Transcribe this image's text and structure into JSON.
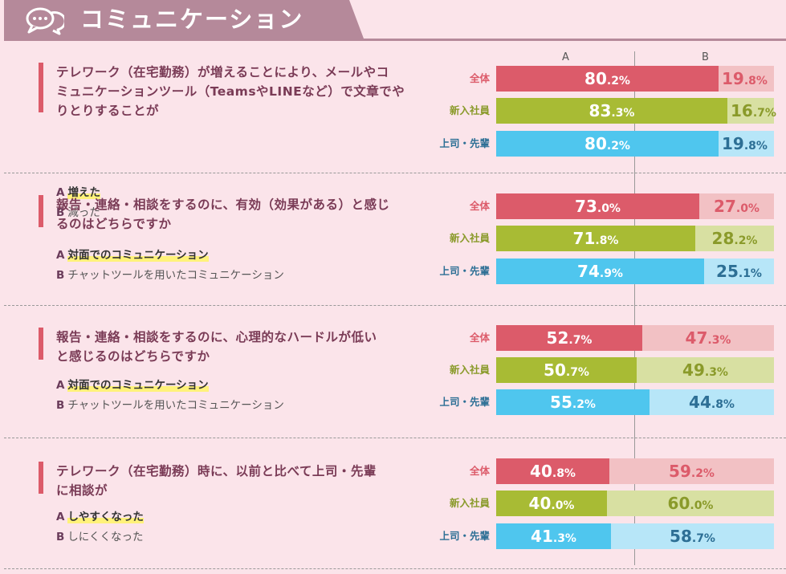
{
  "header": {
    "title": "コミュニケーション"
  },
  "axis": {
    "a_label": "A",
    "b_label": "B"
  },
  "colors": {
    "overall": {
      "a": "#dc5b6a",
      "b": "#f2c1c4",
      "text_b": "#dc5b6a",
      "label": "#dc5b6a"
    },
    "new": {
      "a": "#a8bb34",
      "b": "#d8e0a2",
      "text_b": "#8a9a2a",
      "label": "#8a9a2a"
    },
    "boss": {
      "a": "#4fc6ee",
      "b": "#b7e6f8",
      "text_b": "#2d6f95",
      "label": "#2d6f95"
    }
  },
  "sections": [
    {
      "question_lines": [
        "テレワーク（在宅勤務）が増えることにより、メールやコ",
        "ミュニケーションツール（TeamsやLINEなど）で文章でや",
        "りとりすることが"
      ],
      "option_a": {
        "tag": "A",
        "text": "増えた"
      },
      "option_b": {
        "tag": "B",
        "text": "減った"
      }
    },
    {
      "question_lines": [
        "報告・連絡・相談をするのに、有効（効果がある）と感じ",
        "るのはどちらですか"
      ],
      "option_a": {
        "tag": "A",
        "text": "対面でのコミュニケーション"
      },
      "option_b": {
        "tag": "B",
        "text": "チャットツールを用いたコミュニケーション"
      }
    },
    {
      "question_lines": [
        "報告・連絡・相談をするのに、心理的なハードルが低い",
        "と感じるのはどちらですか"
      ],
      "option_a": {
        "tag": "A",
        "text": "対面でのコミュニケーション"
      },
      "option_b": {
        "tag": "B",
        "text": "チャットツールを用いたコミュニケーション"
      }
    },
    {
      "question_lines": [
        "テレワーク（在宅勤務）時に、以前と比べて上司・先輩",
        "に相談が"
      ],
      "option_a": {
        "tag": "A",
        "text": "しやすくなった"
      },
      "option_b": {
        "tag": "B",
        "text": "しにくくなった"
      }
    }
  ],
  "chart_data": {
    "type": "bar",
    "stacked": true,
    "percent": true,
    "groups": [
      "全体",
      "新入社員",
      "上司・先輩"
    ],
    "series_names": [
      "A",
      "B"
    ],
    "panels": [
      {
        "values": [
          {
            "a": [
              80,
              2
            ],
            "b": [
              19,
              8
            ]
          },
          {
            "a": [
              83,
              3
            ],
            "b": [
              16,
              7
            ]
          },
          {
            "a": [
              80,
              2
            ],
            "b": [
              19,
              8
            ]
          }
        ]
      },
      {
        "values": [
          {
            "a": [
              73,
              0
            ],
            "b": [
              27,
              0
            ]
          },
          {
            "a": [
              71,
              8
            ],
            "b": [
              28,
              2
            ]
          },
          {
            "a": [
              74,
              9
            ],
            "b": [
              25,
              1
            ]
          }
        ]
      },
      {
        "values": [
          {
            "a": [
              52,
              7
            ],
            "b": [
              47,
              3
            ]
          },
          {
            "a": [
              50,
              7
            ],
            "b": [
              49,
              3
            ]
          },
          {
            "a": [
              55,
              2
            ],
            "b": [
              44,
              8
            ]
          }
        ]
      },
      {
        "values": [
          {
            "a": [
              40,
              8
            ],
            "b": [
              59,
              2
            ]
          },
          {
            "a": [
              40,
              0
            ],
            "b": [
              60,
              0
            ]
          },
          {
            "a": [
              41,
              3
            ],
            "b": [
              58,
              7
            ]
          }
        ]
      }
    ]
  }
}
